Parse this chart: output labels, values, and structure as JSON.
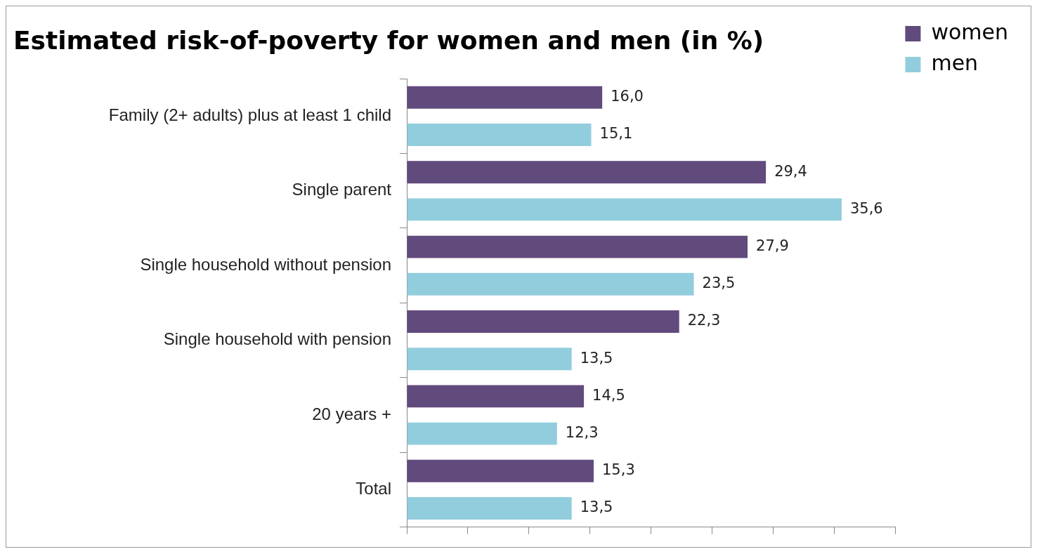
{
  "chart_data": {
    "type": "bar",
    "orientation": "horizontal",
    "title": "Estimated risk-of-poverty for women and men (in %)",
    "categories": [
      "Family (2+ adults) plus at least 1 child",
      "Single parent",
      "Single household without pension",
      "Single household with pension",
      "20 years +",
      "Total"
    ],
    "series": [
      {
        "name": "women",
        "color": "#614a7c",
        "values": [
          16.0,
          29.4,
          27.9,
          22.3,
          14.5,
          15.3
        ],
        "value_labels": [
          "16,0",
          "29,4",
          "27,9",
          "22,3",
          "14,5",
          "15,3"
        ]
      },
      {
        "name": "men",
        "color": "#92cddd",
        "values": [
          15.1,
          35.6,
          23.5,
          13.5,
          12.3,
          13.5
        ],
        "value_labels": [
          "15,1",
          "35,6",
          "23,5",
          "13,5",
          "12,3",
          "13,5"
        ]
      }
    ],
    "xlim": [
      0,
      40
    ],
    "xticks": [
      {
        "value": 0,
        "label": null
      },
      {
        "value": 5,
        "label": null
      },
      {
        "value": 10,
        "label": null
      },
      {
        "value": 15,
        "label": null
      },
      {
        "value": 20,
        "label": null
      },
      {
        "value": 25,
        "label": null
      },
      {
        "value": 30,
        "label": null
      },
      {
        "value": 35,
        "label": null
      },
      {
        "value": 40,
        "label": null
      }
    ],
    "tick_labels": "y",
    "grid": false,
    "legend": "top right"
  }
}
